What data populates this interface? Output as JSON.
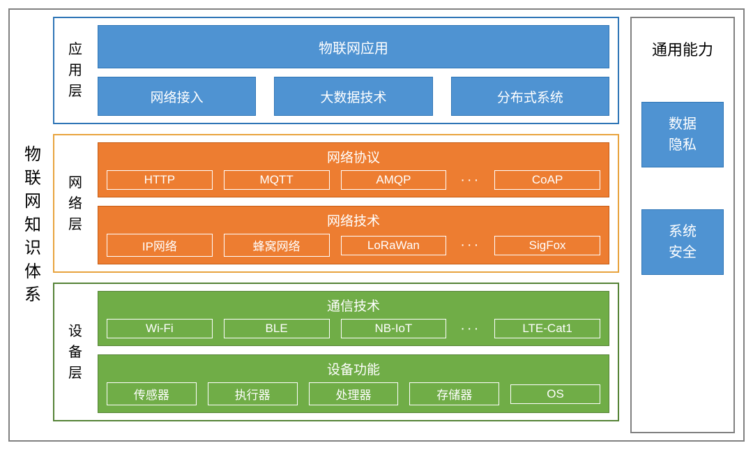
{
  "colors": {
    "outer_border": "#808080",
    "blue_fill": "#4f93d2",
    "blue_border": "#2e75b6",
    "orange_fill": "#ed7d31",
    "orange_border": "#e8a33d",
    "green_fill": "#70ad47",
    "green_border": "#548235",
    "side_border": "#808080",
    "text_black": "#000000",
    "text_white": "#ffffff"
  },
  "typography": {
    "main_title_fontsize": 24,
    "layer_label_fontsize": 20,
    "block_fontsize": 20,
    "group_title_fontsize": 19,
    "chip_fontsize": 17,
    "side_title_fontsize": 22
  },
  "diagram": {
    "type": "layered-architecture",
    "main_title": "物联网知识体系",
    "layers": [
      {
        "id": "application",
        "label": "应用层",
        "border_color": "#2e75b6",
        "block_fill": "#4f93d2",
        "block_border": "#2e75b6",
        "rows": [
          {
            "kind": "single",
            "label": "物联网应用"
          },
          {
            "kind": "multi",
            "items": [
              "网络接入",
              "大数据技术",
              "分布式系统"
            ]
          }
        ]
      },
      {
        "id": "network",
        "label": "网络层",
        "border_color": "#e8a33d",
        "block_fill": "#ed7d31",
        "block_border": "#c55a11",
        "rows": [
          {
            "kind": "group",
            "title": "网络协议",
            "chips": [
              "HTTP",
              "MQTT",
              "AMQP"
            ],
            "ellipsis": true,
            "tail": [
              "CoAP"
            ]
          },
          {
            "kind": "group",
            "title": "网络技术",
            "chips": [
              "IP网络",
              "蜂窝网络",
              "LoRaWan"
            ],
            "ellipsis": true,
            "tail": [
              "SigFox"
            ]
          }
        ]
      },
      {
        "id": "device",
        "label": "设备层",
        "border_color": "#548235",
        "block_fill": "#70ad47",
        "block_border": "#548235",
        "rows": [
          {
            "kind": "group",
            "title": "通信技术",
            "chips": [
              "Wi-Fi",
              "BLE",
              "NB-IoT"
            ],
            "ellipsis": true,
            "tail": [
              "LTE-Cat1"
            ]
          },
          {
            "kind": "group",
            "title": "设备功能",
            "chips": [
              "传感器",
              "执行器",
              "处理器",
              "存储器"
            ],
            "ellipsis": false,
            "tail": [
              "OS"
            ]
          }
        ]
      }
    ],
    "side": {
      "title": "通用能力",
      "block_fill": "#4f93d2",
      "block_border": "#2e75b6",
      "items": [
        "数据隐私",
        "系统安全"
      ]
    }
  }
}
